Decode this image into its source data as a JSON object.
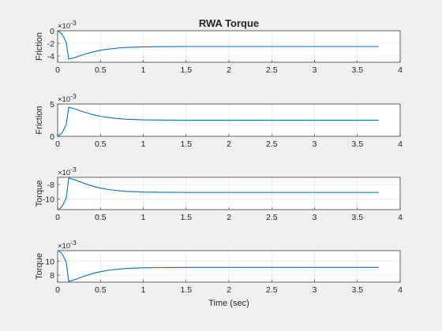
{
  "figure": {
    "title": "RWA Torque",
    "xlabel": "Time (sec)"
  },
  "chart_data": [
    {
      "type": "line",
      "title": "RWA Torque",
      "xlabel": "",
      "ylabel": "Friction",
      "exponent": "×10",
      "exponent_power": "-3",
      "xlim": [
        0,
        4
      ],
      "ylim": [
        -5,
        0
      ],
      "xticks": [
        "0",
        "0.5",
        "1",
        "1.5",
        "2",
        "2.5",
        "3",
        "3.5",
        "4"
      ],
      "yticks": [
        "0",
        "-2",
        "-4"
      ],
      "ytick_values": [
        0,
        -2,
        -4
      ],
      "grid": true,
      "color": "#0072BD",
      "x": [
        0,
        0.05,
        0.1,
        0.13,
        0.2,
        0.3,
        0.4,
        0.5,
        0.6,
        0.7,
        0.8,
        0.9,
        1.0,
        1.2,
        1.5,
        2.0,
        2.5,
        3.0,
        3.5,
        3.75
      ],
      "y": [
        0,
        -0.5,
        -1.8,
        -4.5,
        -4.25,
        -3.8,
        -3.4,
        -3.1,
        -2.9,
        -2.75,
        -2.65,
        -2.6,
        -2.55,
        -2.52,
        -2.5,
        -2.5,
        -2.5,
        -2.5,
        -2.5,
        -2.5
      ]
    },
    {
      "type": "line",
      "xlabel": "",
      "ylabel": "Friction",
      "exponent": "×10",
      "exponent_power": "-3",
      "xlim": [
        0,
        4
      ],
      "ylim": [
        0,
        5
      ],
      "xticks": [
        "0",
        "0.5",
        "1",
        "1.5",
        "2",
        "2.5",
        "3",
        "3.5",
        "4"
      ],
      "yticks": [
        "5",
        "0"
      ],
      "ytick_values": [
        5,
        0
      ],
      "grid": true,
      "color": "#0072BD",
      "x": [
        0,
        0.05,
        0.1,
        0.13,
        0.2,
        0.3,
        0.4,
        0.5,
        0.6,
        0.7,
        0.8,
        0.9,
        1.0,
        1.2,
        1.5,
        2.0,
        2.5,
        3.0,
        3.5,
        3.75
      ],
      "y": [
        0,
        0.5,
        1.8,
        4.5,
        4.25,
        3.8,
        3.4,
        3.1,
        2.9,
        2.75,
        2.65,
        2.6,
        2.55,
        2.52,
        2.5,
        2.5,
        2.5,
        2.5,
        2.5,
        2.5
      ]
    },
    {
      "type": "line",
      "xlabel": "",
      "ylabel": "Torque",
      "exponent": "×10",
      "exponent_power": "-3",
      "xlim": [
        0,
        4
      ],
      "ylim": [
        -11.5,
        -7
      ],
      "xticks": [
        "0",
        "0.5",
        "1",
        "1.5",
        "2",
        "2.5",
        "3",
        "3.5",
        "4"
      ],
      "yticks": [
        "-8",
        "-10"
      ],
      "ytick_values": [
        -8,
        -10
      ],
      "grid": true,
      "color": "#0072BD",
      "x": [
        0,
        0.05,
        0.1,
        0.13,
        0.2,
        0.3,
        0.4,
        0.5,
        0.6,
        0.7,
        0.8,
        0.9,
        1.0,
        1.2,
        1.5,
        2.0,
        2.5,
        3.0,
        3.5,
        3.75
      ],
      "y": [
        -11.6,
        -11.1,
        -9.9,
        -7.1,
        -7.35,
        -7.8,
        -8.2,
        -8.5,
        -8.7,
        -8.85,
        -8.95,
        -9.0,
        -9.05,
        -9.08,
        -9.1,
        -9.1,
        -9.1,
        -9.1,
        -9.1,
        -9.1
      ]
    },
    {
      "type": "line",
      "xlabel": "Time (sec)",
      "ylabel": "Torque",
      "exponent": "×10",
      "exponent_power": "-3",
      "xlim": [
        0,
        4
      ],
      "ylim": [
        7,
        11.5
      ],
      "xticks": [
        "0",
        "0.5",
        "1",
        "1.5",
        "2",
        "2.5",
        "3",
        "3.5",
        "4"
      ],
      "yticks": [
        "10",
        "8"
      ],
      "ytick_values": [
        10,
        8
      ],
      "grid": true,
      "color": "#0072BD",
      "x": [
        0,
        0.05,
        0.1,
        0.13,
        0.2,
        0.3,
        0.4,
        0.5,
        0.6,
        0.7,
        0.8,
        0.9,
        1.0,
        1.2,
        1.5,
        2.0,
        2.5,
        3.0,
        3.5,
        3.75
      ],
      "y": [
        11.6,
        11.1,
        9.9,
        7.1,
        7.35,
        7.8,
        8.2,
        8.5,
        8.7,
        8.85,
        8.95,
        9.0,
        9.05,
        9.08,
        9.1,
        9.1,
        9.1,
        9.1,
        9.1,
        9.1
      ]
    }
  ]
}
